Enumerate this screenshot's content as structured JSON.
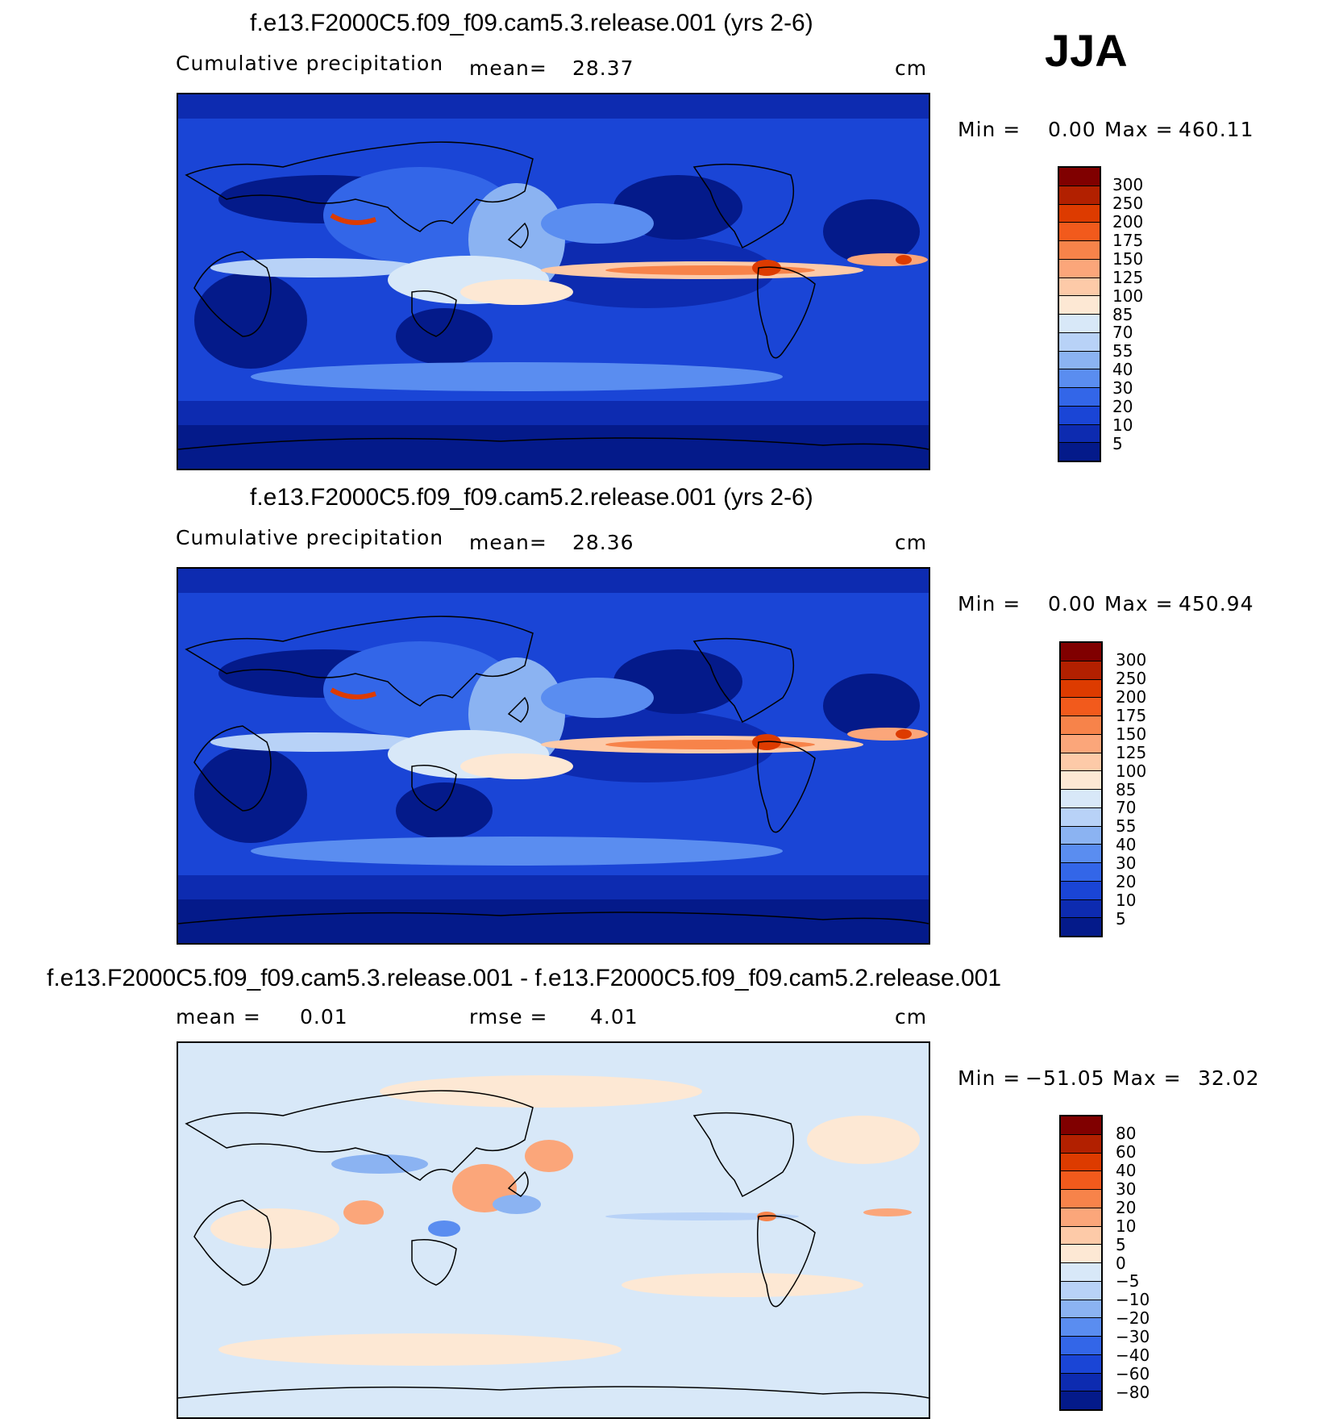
{
  "season": "JJA",
  "panels": [
    {
      "title": "f.e13.F2000C5.f09_f09.cam5.3.release.001 (yrs 2-6)",
      "left_label": "Cumulative precipitation",
      "mid_label": "mean=",
      "mid_value": "28.37",
      "units": "cm",
      "min_label": "Min =",
      "min_value": "0.00",
      "max_label": "Max =",
      "max_value": "460.11",
      "colorbar_labels": [
        "300",
        "250",
        "200",
        "175",
        "150",
        "125",
        "100",
        "85",
        "70",
        "55",
        "40",
        "30",
        "20",
        "10",
        "5"
      ],
      "colors": [
        "#800000",
        "#b22000",
        "#dd3b00",
        "#f25a1c",
        "#f7834a",
        "#fba67a",
        "#fdcaa8",
        "#fde8d4",
        "#d8e8f8",
        "#b8d2f7",
        "#8bb3f2",
        "#5a8df0",
        "#3366e8",
        "#1a45d6",
        "#0d2bb0",
        "#041a8a"
      ]
    },
    {
      "title": "f.e13.F2000C5.f09_f09.cam5.2.release.001 (yrs 2-6)",
      "left_label": "Cumulative precipitation",
      "mid_label": "mean=",
      "mid_value": "28.36",
      "units": "cm",
      "min_label": "Min =",
      "min_value": "0.00",
      "max_label": "Max =",
      "max_value": "450.94",
      "colorbar_labels": [
        "300",
        "250",
        "200",
        "175",
        "150",
        "125",
        "100",
        "85",
        "70",
        "55",
        "40",
        "30",
        "20",
        "10",
        "5"
      ],
      "colors": [
        "#800000",
        "#b22000",
        "#dd3b00",
        "#f25a1c",
        "#f7834a",
        "#fba67a",
        "#fdcaa8",
        "#fde8d4",
        "#d8e8f8",
        "#b8d2f7",
        "#8bb3f2",
        "#5a8df0",
        "#3366e8",
        "#1a45d6",
        "#0d2bb0",
        "#041a8a"
      ]
    },
    {
      "title": "f.e13.F2000C5.f09_f09.cam5.3.release.001 - f.e13.F2000C5.f09_f09.cam5.2.release.001",
      "left_label": "mean =",
      "left_value": "0.01",
      "mid_label": "rmse =",
      "mid_value": "4.01",
      "units": "cm",
      "min_label": "Min =",
      "min_value": "−51.05",
      "max_label": "Max =",
      "max_value": "32.02",
      "colorbar_labels": [
        "80",
        "60",
        "40",
        "30",
        "20",
        "10",
        "5",
        "0",
        "−5",
        "−10",
        "−20",
        "−30",
        "−40",
        "−60",
        "−80"
      ],
      "colors": [
        "#800000",
        "#b22000",
        "#dd3b00",
        "#f25a1c",
        "#f7834a",
        "#fba67a",
        "#fdcaa8",
        "#fde8d4",
        "#d8e8f8",
        "#b8d2f7",
        "#8bb3f2",
        "#5a8df0",
        "#3366e8",
        "#1a45d6",
        "#0d2bb0",
        "#041a8a"
      ]
    }
  ]
}
